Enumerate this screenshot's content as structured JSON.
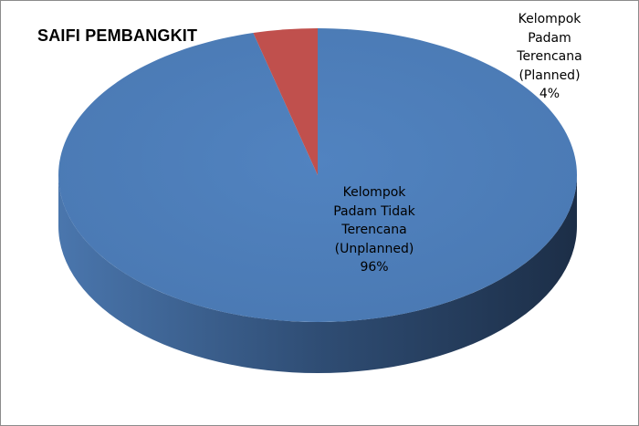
{
  "chart_data": {
    "type": "pie",
    "style": "3d",
    "title": "SAIFI PEMBANGKIT",
    "slices": [
      {
        "label_lines": [
          "Kelompok",
          "Padam Tidak",
          "Terencana",
          "(Unplanned)"
        ],
        "percent_label": "96%",
        "value": 96,
        "color": "#4F81BD"
      },
      {
        "label_lines": [
          "Kelompok",
          "Padam",
          "Terencana",
          "(Planned)"
        ],
        "percent_label": "4%",
        "value": 4,
        "color": "#C0504D"
      }
    ]
  }
}
